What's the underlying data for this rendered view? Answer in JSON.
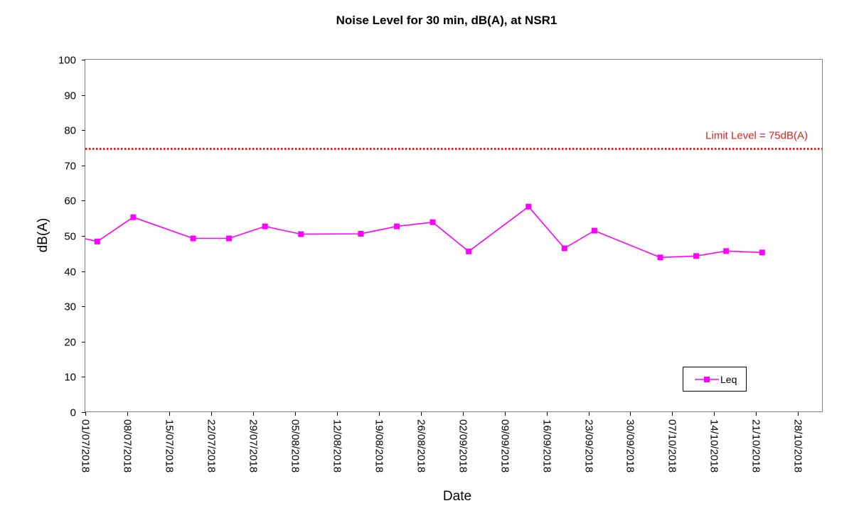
{
  "chart_data": {
    "type": "line",
    "title": "Noise Level for 30 min, dB(A), at NSR1",
    "xlabel": "Date",
    "ylabel": "dB(A)",
    "ylim": [
      0,
      100
    ],
    "yticks": [
      0,
      10,
      20,
      30,
      40,
      50,
      60,
      70,
      80,
      90,
      100
    ],
    "xlim": [
      "2018-07-01",
      "2018-11-01"
    ],
    "xticks": [
      "01/07/2018",
      "08/07/2018",
      "15/07/2018",
      "22/07/2018",
      "29/07/2018",
      "05/08/2018",
      "12/08/2018",
      "19/08/2018",
      "26/08/2018",
      "02/09/2018",
      "09/09/2018",
      "16/09/2018",
      "23/09/2018",
      "30/09/2018",
      "07/10/2018",
      "14/10/2018",
      "21/10/2018",
      "28/10/2018"
    ],
    "grid": false,
    "legend": {
      "position": "bottom-right",
      "entries": [
        "Leq"
      ]
    },
    "limit": {
      "value": 74.7,
      "label": "Limit Level = 75dB(A)",
      "color": "#e32020"
    },
    "series": [
      {
        "name": "Leq",
        "color": "#ff00ff",
        "x": [
          "2018-06-30",
          "2018-07-03",
          "2018-07-09",
          "2018-07-19",
          "2018-07-25",
          "2018-07-31",
          "2018-08-06",
          "2018-08-16",
          "2018-08-22",
          "2018-08-28",
          "2018-09-03",
          "2018-09-13",
          "2018-09-19",
          "2018-09-24",
          "2018-10-05",
          "2018-10-11",
          "2018-10-16",
          "2018-10-22"
        ],
        "values": [
          49.2,
          48.4,
          55.3,
          49.3,
          49.3,
          52.7,
          50.5,
          50.6,
          52.7,
          53.9,
          45.6,
          58.3,
          46.5,
          51.5,
          43.9,
          44.3,
          45.7,
          45.3
        ],
        "markers": [
          false,
          true,
          true,
          true,
          true,
          true,
          true,
          true,
          true,
          true,
          true,
          true,
          true,
          true,
          true,
          true,
          true,
          true
        ]
      }
    ]
  }
}
